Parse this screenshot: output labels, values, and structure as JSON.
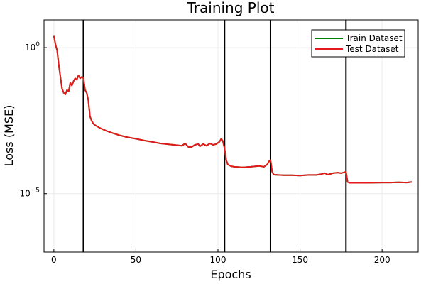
{
  "chart_data": {
    "type": "line",
    "title": "Training Plot",
    "xlabel": "Epochs",
    "ylabel": "Loss (MSE)",
    "xlim": [
      -6,
      222
    ],
    "ylim_log10": [
      -7,
      0.95
    ],
    "yscale": "log10",
    "grid": true,
    "legend": "top-right",
    "x_ticks": [
      0,
      50,
      100,
      150,
      200
    ],
    "y_ticks": [
      {
        "value_log10": 0,
        "base": "10",
        "exp": "0"
      },
      {
        "value_log10": -5,
        "base": "10",
        "exp": "−5"
      }
    ],
    "vlines": [
      18,
      104,
      132,
      178
    ],
    "series": [
      {
        "name": "Train Dataset",
        "color": "#008000",
        "points": [
          [
            0,
            0.4
          ],
          [
            1,
            0.1
          ],
          [
            2,
            -0.1
          ],
          [
            3,
            -0.6
          ],
          [
            4,
            -1.0
          ],
          [
            5,
            -1.4
          ],
          [
            6,
            -1.55
          ],
          [
            7,
            -1.6
          ],
          [
            8,
            -1.45
          ],
          [
            9,
            -1.5
          ],
          [
            10,
            -1.2
          ],
          [
            11,
            -1.3
          ],
          [
            12,
            -1.15
          ],
          [
            13,
            -1.05
          ],
          [
            14,
            -1.1
          ],
          [
            15,
            -0.95
          ],
          [
            16,
            -1.05
          ],
          [
            17,
            -1.0
          ],
          [
            18,
            -1.05
          ],
          [
            19,
            -1.45
          ],
          [
            20,
            -1.55
          ],
          [
            21,
            -1.8
          ],
          [
            22,
            -2.35
          ],
          [
            23,
            -2.5
          ],
          [
            24,
            -2.6
          ],
          [
            25,
            -2.65
          ],
          [
            28,
            -2.75
          ],
          [
            32,
            -2.85
          ],
          [
            36,
            -2.93
          ],
          [
            40,
            -3.0
          ],
          [
            45,
            -3.07
          ],
          [
            50,
            -3.12
          ],
          [
            55,
            -3.18
          ],
          [
            60,
            -3.23
          ],
          [
            65,
            -3.28
          ],
          [
            70,
            -3.31
          ],
          [
            75,
            -3.34
          ],
          [
            78,
            -3.36
          ],
          [
            80,
            -3.28
          ],
          [
            82,
            -3.4
          ],
          [
            84,
            -3.4
          ],
          [
            86,
            -3.33
          ],
          [
            88,
            -3.3
          ],
          [
            89,
            -3.38
          ],
          [
            91,
            -3.3
          ],
          [
            93,
            -3.36
          ],
          [
            95,
            -3.28
          ],
          [
            97,
            -3.33
          ],
          [
            99,
            -3.3
          ],
          [
            101,
            -3.22
          ],
          [
            102,
            -3.12
          ],
          [
            103,
            -3.2
          ],
          [
            104,
            -3.45
          ],
          [
            105,
            -3.85
          ],
          [
            106,
            -4.0
          ],
          [
            108,
            -4.06
          ],
          [
            110,
            -4.08
          ],
          [
            115,
            -4.1
          ],
          [
            120,
            -4.08
          ],
          [
            125,
            -4.05
          ],
          [
            128,
            -4.08
          ],
          [
            130,
            -4.0
          ],
          [
            131,
            -3.9
          ],
          [
            132,
            -3.85
          ],
          [
            133,
            -4.25
          ],
          [
            134,
            -4.35
          ],
          [
            140,
            -4.37
          ],
          [
            145,
            -4.37
          ],
          [
            150,
            -4.38
          ],
          [
            155,
            -4.36
          ],
          [
            160,
            -4.36
          ],
          [
            163,
            -4.33
          ],
          [
            165,
            -4.3
          ],
          [
            167,
            -4.35
          ],
          [
            170,
            -4.3
          ],
          [
            173,
            -4.28
          ],
          [
            175,
            -4.3
          ],
          [
            178,
            -4.25
          ],
          [
            179,
            -4.6
          ],
          [
            180,
            -4.63
          ],
          [
            190,
            -4.63
          ],
          [
            200,
            -4.62
          ],
          [
            205,
            -4.62
          ],
          [
            210,
            -4.61
          ],
          [
            215,
            -4.62
          ],
          [
            218,
            -4.6
          ]
        ]
      },
      {
        "name": "Test Dataset",
        "color": "#e31a1c",
        "points": [
          [
            0,
            0.4
          ],
          [
            1,
            0.1
          ],
          [
            2,
            -0.1
          ],
          [
            3,
            -0.6
          ],
          [
            4,
            -1.0
          ],
          [
            5,
            -1.4
          ],
          [
            6,
            -1.55
          ],
          [
            7,
            -1.6
          ],
          [
            8,
            -1.45
          ],
          [
            9,
            -1.5
          ],
          [
            10,
            -1.2
          ],
          [
            11,
            -1.3
          ],
          [
            12,
            -1.15
          ],
          [
            13,
            -1.05
          ],
          [
            14,
            -1.1
          ],
          [
            15,
            -0.95
          ],
          [
            16,
            -1.05
          ],
          [
            17,
            -1.0
          ],
          [
            18,
            -1.05
          ],
          [
            19,
            -1.45
          ],
          [
            20,
            -1.55
          ],
          [
            21,
            -1.8
          ],
          [
            22,
            -2.35
          ],
          [
            23,
            -2.5
          ],
          [
            24,
            -2.6
          ],
          [
            25,
            -2.65
          ],
          [
            28,
            -2.75
          ],
          [
            32,
            -2.85
          ],
          [
            36,
            -2.93
          ],
          [
            40,
            -3.0
          ],
          [
            45,
            -3.07
          ],
          [
            50,
            -3.12
          ],
          [
            55,
            -3.18
          ],
          [
            60,
            -3.23
          ],
          [
            65,
            -3.28
          ],
          [
            70,
            -3.31
          ],
          [
            75,
            -3.34
          ],
          [
            78,
            -3.36
          ],
          [
            80,
            -3.28
          ],
          [
            82,
            -3.4
          ],
          [
            84,
            -3.4
          ],
          [
            86,
            -3.33
          ],
          [
            88,
            -3.3
          ],
          [
            89,
            -3.38
          ],
          [
            91,
            -3.3
          ],
          [
            93,
            -3.36
          ],
          [
            95,
            -3.28
          ],
          [
            97,
            -3.33
          ],
          [
            99,
            -3.3
          ],
          [
            101,
            -3.22
          ],
          [
            102,
            -3.12
          ],
          [
            103,
            -3.2
          ],
          [
            104,
            -3.45
          ],
          [
            105,
            -3.85
          ],
          [
            106,
            -4.0
          ],
          [
            108,
            -4.06
          ],
          [
            110,
            -4.08
          ],
          [
            115,
            -4.1
          ],
          [
            120,
            -4.08
          ],
          [
            125,
            -4.05
          ],
          [
            128,
            -4.08
          ],
          [
            130,
            -4.0
          ],
          [
            131,
            -3.9
          ],
          [
            132,
            -3.85
          ],
          [
            133,
            -4.25
          ],
          [
            134,
            -4.35
          ],
          [
            140,
            -4.37
          ],
          [
            145,
            -4.37
          ],
          [
            150,
            -4.38
          ],
          [
            155,
            -4.36
          ],
          [
            160,
            -4.36
          ],
          [
            163,
            -4.33
          ],
          [
            165,
            -4.3
          ],
          [
            167,
            -4.35
          ],
          [
            170,
            -4.3
          ],
          [
            173,
            -4.28
          ],
          [
            175,
            -4.3
          ],
          [
            178,
            -4.25
          ],
          [
            179,
            -4.6
          ],
          [
            180,
            -4.63
          ],
          [
            190,
            -4.63
          ],
          [
            200,
            -4.62
          ],
          [
            205,
            -4.62
          ],
          [
            210,
            -4.61
          ],
          [
            215,
            -4.62
          ],
          [
            218,
            -4.6
          ]
        ]
      }
    ]
  }
}
